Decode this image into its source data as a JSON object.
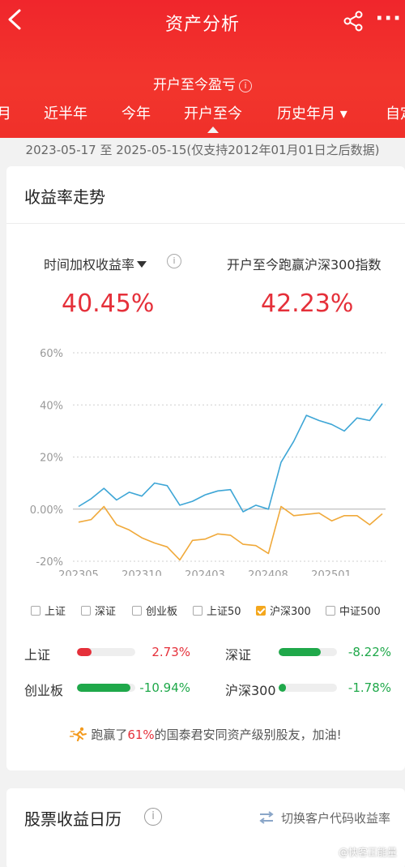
{
  "header": {
    "title": "资产分析",
    "subtitle": "开户至今盈亏",
    "tabs": [
      {
        "label": "月"
      },
      {
        "label": "近半年"
      },
      {
        "label": "今年"
      },
      {
        "label": "开户至今",
        "active": true
      },
      {
        "label": "历史年月 ▾"
      },
      {
        "label": "自定"
      }
    ]
  },
  "date_range": "2023-05-17 至 2025-05-15(仅支持2012年01月01日之后数据)",
  "trend_card": {
    "title": "收益率走势",
    "metric_left_label": "时间加权收益率",
    "metric_left_value": "40.45%",
    "metric_right_label": "开户至今跑赢沪深300指数",
    "metric_right_value": "42.23%"
  },
  "chart_data": {
    "type": "line",
    "y_ticks": [
      "60%",
      "40%",
      "20%",
      "0.00%",
      "-20%"
    ],
    "x_ticks": [
      "202305",
      "202310",
      "202403",
      "202408",
      "202501"
    ],
    "ylim": [
      -20,
      60
    ],
    "grid": true,
    "series": [
      {
        "name": "时间加权收益率",
        "color": "#3ea6d6",
        "values": [
          1,
          4,
          8,
          3.5,
          6.5,
          5,
          10,
          9,
          1.5,
          3,
          5.5,
          7,
          7.5,
          -1,
          1.5,
          0,
          18,
          26,
          36,
          34,
          32.5,
          30,
          35,
          34,
          40.5
        ]
      },
      {
        "name": "沪深300",
        "color": "#f0a93a",
        "values": [
          -5,
          -4,
          1,
          -6,
          -8,
          -11,
          -13,
          -14.5,
          -19.5,
          -12,
          -11.5,
          -9.5,
          -10,
          -13.5,
          -14,
          -17,
          1,
          -2.5,
          -2,
          -1.5,
          -4.5,
          -2.5,
          -2.5,
          -6,
          -1.8
        ]
      }
    ]
  },
  "legend": [
    {
      "label": "上证",
      "checked": false
    },
    {
      "label": "深证",
      "checked": false
    },
    {
      "label": "创业板",
      "checked": false
    },
    {
      "label": "上证50",
      "checked": false
    },
    {
      "label": "沪深300",
      "checked": true
    },
    {
      "label": "中证500",
      "checked": false
    }
  ],
  "comparisons": [
    {
      "label": "上证",
      "value": "2.73%",
      "fill": 0.25,
      "color": "#e5303a"
    },
    {
      "label": "深证",
      "value": "-8.22%",
      "fill": 0.72,
      "color": "#1fa84a"
    },
    {
      "label": "创业板",
      "value": "-10.94%",
      "fill": 0.92,
      "color": "#1fa84a"
    },
    {
      "label": "沪深300",
      "value": "-1.78%",
      "fill": 0.12,
      "color": "#1fa84a"
    }
  ],
  "beat": {
    "prefix": "跑赢了",
    "percent": "61%",
    "suffix": "的国泰君安同资产级别股友，加油!"
  },
  "calendar_card": {
    "title": "股票收益日历",
    "switch_label": "切换客户代码收益率"
  },
  "watermark": "@快客正能量"
}
